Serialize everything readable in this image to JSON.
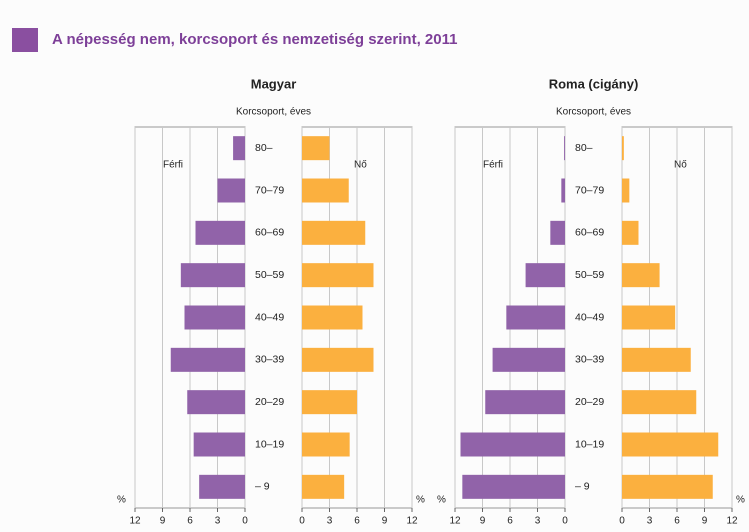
{
  "title": "A népesség nem, korcsoport és nemzetiség szerint, 2011",
  "chart_data": [
    {
      "type": "pyramid",
      "title": "Magyar",
      "axis_label": "Korcsoport, éves",
      "unit": "%",
      "categories": [
        "80–",
        "70–79",
        "60–69",
        "50–59",
        "40–49",
        "30–39",
        "20–29",
        "10–19",
        "– 9"
      ],
      "series": [
        {
          "name": "Férfi",
          "color": "#9163a9",
          "values": [
            1.3,
            3.0,
            5.4,
            7.0,
            6.6,
            8.1,
            6.3,
            5.6,
            5.0
          ]
        },
        {
          "name": "Nő",
          "color": "#fbb03f",
          "values": [
            3.0,
            5.1,
            6.9,
            7.8,
            6.6,
            7.8,
            6.0,
            5.2,
            4.6
          ]
        }
      ],
      "xlim": [
        0,
        12
      ],
      "xticks": [
        0,
        3,
        6,
        9,
        12
      ],
      "grid": true
    },
    {
      "type": "pyramid",
      "title": "Roma (cigány)",
      "axis_label": "Korcsoport, éves",
      "unit": "%",
      "categories": [
        "80–",
        "70–79",
        "60–69",
        "50–59",
        "40–49",
        "30–39",
        "20–29",
        "10–19",
        "– 9"
      ],
      "series": [
        {
          "name": "Férfi",
          "color": "#9163a9",
          "values": [
            0.1,
            0.4,
            1.6,
            4.3,
            6.4,
            7.9,
            8.7,
            11.4,
            11.2
          ]
        },
        {
          "name": "Nő",
          "color": "#fbb03f",
          "values": [
            0.2,
            0.8,
            1.8,
            4.1,
            5.8,
            7.5,
            8.1,
            10.5,
            9.9
          ]
        }
      ],
      "xlim": [
        0,
        12
      ],
      "xticks": [
        0,
        3,
        6,
        9,
        12
      ],
      "grid": true
    }
  ]
}
